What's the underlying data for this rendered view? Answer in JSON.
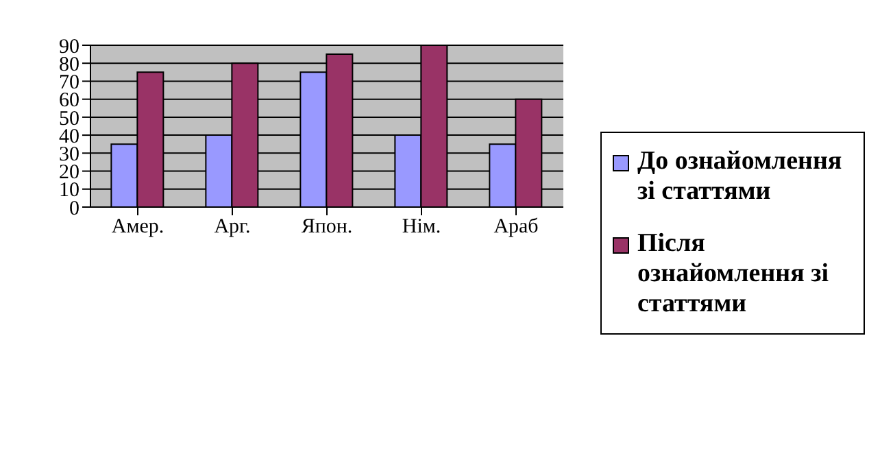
{
  "chart_data": {
    "type": "bar",
    "categories": [
      "Амер.",
      "Арг.",
      "Япон.",
      "Нім.",
      "Араб"
    ],
    "series": [
      {
        "name": "До ознайомлення зі статтями",
        "color": "#9999ff",
        "values": [
          35,
          40,
          75,
          40,
          35
        ]
      },
      {
        "name": "Після ознайомлення зі статтями",
        "color": "#993366",
        "values": [
          75,
          80,
          85,
          90,
          60
        ]
      }
    ],
    "ylim": [
      0,
      90
    ],
    "yticks": [
      0,
      10,
      20,
      30,
      40,
      50,
      60,
      70,
      80,
      90
    ],
    "grid": "y",
    "legend": "right"
  }
}
